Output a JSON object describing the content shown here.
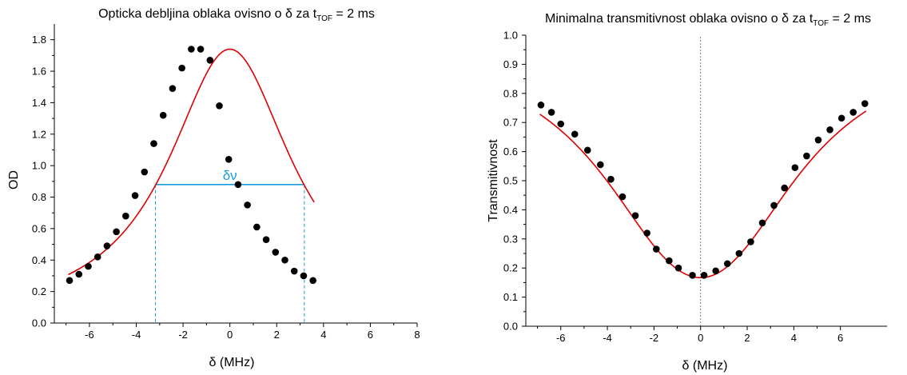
{
  "chart_data": [
    {
      "type": "scatter",
      "title_main": "Opticka debljina oblaka ovisno o δ za t",
      "title_sub": "TOF",
      "title_tail": " = 2 ms",
      "xlabel": "δ (MHz)",
      "ylabel": "OD",
      "xlim": [
        -7.5,
        8
      ],
      "ylim": [
        0,
        1.9
      ],
      "xticks": [
        -6,
        -4,
        -2,
        0,
        2,
        4,
        6,
        8
      ],
      "xtick_labels": [
        "-6",
        "-4",
        "-2",
        "0",
        "2",
        "4",
        "6",
        "8"
      ],
      "yticks": [
        0,
        0.2,
        0.4,
        0.6,
        0.8,
        1.0,
        1.2,
        1.4,
        1.6,
        1.8
      ],
      "ytick_labels": [
        "0.0",
        "0.2",
        "0.4",
        "0.6",
        "0.8",
        "1.0",
        "1.2",
        "1.4",
        "1.6",
        "1.8"
      ],
      "grid": false,
      "annotation": {
        "text": "δν",
        "y": 0.88,
        "x_start": -3.18,
        "x_end": 3.18,
        "color": "#1a9be0"
      },
      "fit": {
        "model": "lorentzian",
        "amplitude": 1.74,
        "center": 0.0,
        "hwhm": 3.2,
        "offset": 0.0,
        "color": "#e00000"
      },
      "points": [
        [
          -6.85,
          0.27
        ],
        [
          -6.45,
          0.31
        ],
        [
          -6.05,
          0.36
        ],
        [
          -5.65,
          0.42
        ],
        [
          -5.25,
          0.49
        ],
        [
          -4.85,
          0.58
        ],
        [
          -4.45,
          0.68
        ],
        [
          -4.05,
          0.81
        ],
        [
          -3.65,
          0.96
        ],
        [
          -3.25,
          1.14
        ],
        [
          -2.85,
          1.32
        ],
        [
          -2.45,
          1.49
        ],
        [
          -2.05,
          1.62
        ],
        [
          -1.65,
          1.74
        ],
        [
          -1.25,
          1.74
        ],
        [
          -0.85,
          1.67
        ],
        [
          -0.45,
          1.38
        ],
        [
          -0.05,
          1.04
        ],
        [
          0.35,
          0.88
        ],
        [
          0.75,
          0.75
        ],
        [
          1.15,
          0.61
        ],
        [
          1.55,
          0.53
        ],
        [
          1.95,
          0.45
        ],
        [
          2.35,
          0.4
        ],
        [
          2.75,
          0.33
        ],
        [
          3.15,
          0.3
        ],
        [
          3.55,
          0.27
        ]
      ],
      "point_color": "#000000"
    },
    {
      "type": "scatter",
      "title_main": "Minimalna transmitivnost oblaka ovisno o δ za t",
      "title_sub": "TOF",
      "title_tail": " = 2 ms",
      "xlabel": "δ (MHz)",
      "ylabel": "Transmitivnost",
      "xlim": [
        -7.5,
        8
      ],
      "ylim": [
        0,
        1.0
      ],
      "xticks": [
        -6,
        -4,
        -2,
        0,
        2,
        4,
        6
      ],
      "xtick_labels": [
        "-6",
        "-4",
        "-2",
        "0",
        "2",
        "4",
        "6"
      ],
      "yticks": [
        0,
        0.1,
        0.2,
        0.3,
        0.4,
        0.5,
        0.6,
        0.7,
        0.8,
        0.9,
        1.0
      ],
      "ytick_labels": [
        "0.0",
        "0.1",
        "0.2",
        "0.3",
        "0.4",
        "0.5",
        "0.6",
        "0.7",
        "0.8",
        "0.9",
        "1.0"
      ],
      "grid": false,
      "reference_line_x": 0,
      "fit": {
        "model": "exp_lorentzian",
        "amplitude": 1.79,
        "center": 0.0,
        "hwhm": 3.2,
        "color": "#e00000"
      },
      "points": [
        [
          -6.85,
          0.76
        ],
        [
          -6.4,
          0.735
        ],
        [
          -6.0,
          0.695
        ],
        [
          -5.4,
          0.66
        ],
        [
          -4.85,
          0.605
        ],
        [
          -4.3,
          0.555
        ],
        [
          -3.85,
          0.505
        ],
        [
          -3.35,
          0.445
        ],
        [
          -2.8,
          0.38
        ],
        [
          -2.3,
          0.32
        ],
        [
          -1.9,
          0.265
        ],
        [
          -1.35,
          0.225
        ],
        [
          -0.95,
          0.2
        ],
        [
          -0.35,
          0.175
        ],
        [
          0.15,
          0.175
        ],
        [
          0.65,
          0.19
        ],
        [
          1.15,
          0.215
        ],
        [
          1.65,
          0.25
        ],
        [
          2.15,
          0.29
        ],
        [
          2.65,
          0.355
        ],
        [
          3.15,
          0.415
        ],
        [
          3.6,
          0.475
        ],
        [
          4.05,
          0.545
        ],
        [
          4.55,
          0.585
        ],
        [
          5.05,
          0.64
        ],
        [
          5.55,
          0.675
        ],
        [
          6.05,
          0.715
        ],
        [
          6.55,
          0.735
        ],
        [
          7.05,
          0.765
        ]
      ],
      "point_color": "#000000"
    }
  ]
}
